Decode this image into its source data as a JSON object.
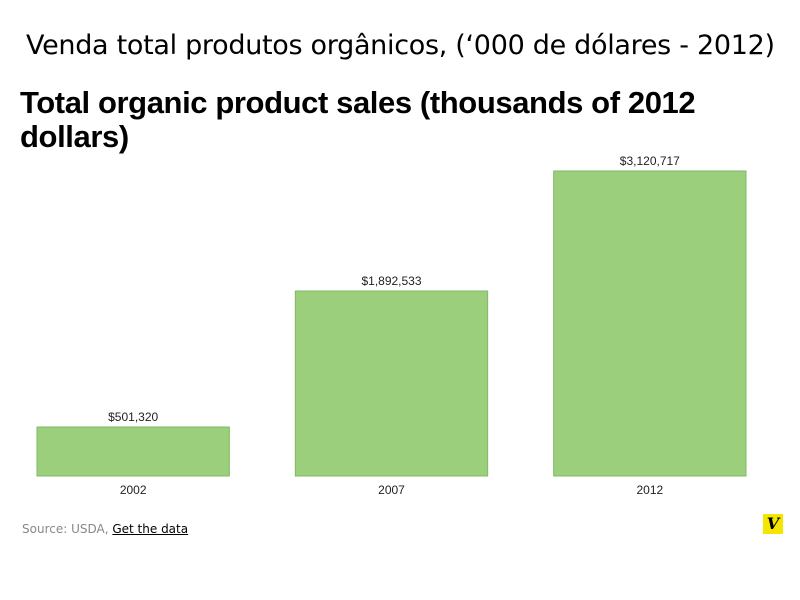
{
  "header": {
    "title_pt": "Venda total produtos orgânicos, (‘000 de dólares - 2012)"
  },
  "footer": {
    "source_prefix": "Source: USDA,",
    "source_link": "Get the data",
    "logo_text": "V"
  },
  "colors": {
    "bar_fill": "#9ccf7c",
    "bar_stroke": "#7fb866",
    "logo_bg": "#f5e600"
  },
  "chart_data": {
    "type": "bar",
    "title": "Total organic product sales (thousands of 2012 dollars)",
    "categories": [
      "2002",
      "2007",
      "2012"
    ],
    "values": [
      501320,
      1892533,
      3120717
    ],
    "value_labels": [
      "$501,320",
      "$1,892,533",
      "$3,120,717"
    ],
    "xlabel": "",
    "ylabel": "",
    "ylim": [
      0,
      3120717
    ],
    "grid": false,
    "legend": "none"
  }
}
